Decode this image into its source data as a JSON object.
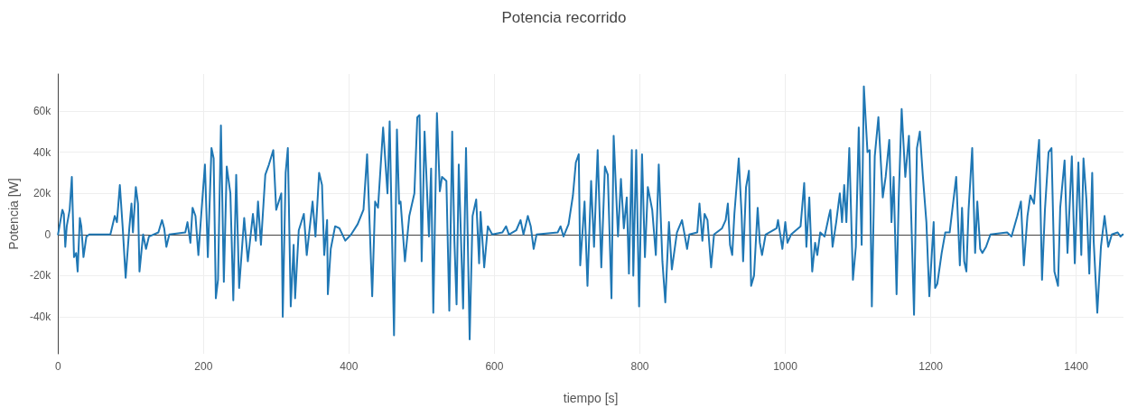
{
  "chart_data": {
    "type": "line",
    "title": "Potencia recorrido",
    "xlabel": "tiempo [s]",
    "ylabel": "Potencia [W]",
    "xlim": [
      0,
      1465
    ],
    "xticks": [
      0,
      200,
      400,
      600,
      800,
      1000,
      1200,
      1400
    ],
    "ylim": [
      -58000,
      78000
    ],
    "yticks": [
      {
        "value": -40000,
        "label": "-40k"
      },
      {
        "value": -20000,
        "label": "-20k"
      },
      0,
      {
        "value": 20000,
        "label": "20k"
      },
      {
        "value": 40000,
        "label": "40k"
      },
      {
        "value": 60000,
        "label": "60k"
      }
    ],
    "grid": true,
    "legend": false,
    "marker": "none",
    "line_style": "solid",
    "ref_lines": [
      {
        "axis": "y",
        "value": 0,
        "color": "#444444",
        "line_style": "solid"
      }
    ],
    "series": [
      {
        "color": "#1f77b4",
        "x": [
          0,
          2,
          6,
          8,
          10,
          12,
          16,
          19,
          22,
          25,
          27,
          30,
          32,
          35,
          39,
          43,
          72,
          78,
          81,
          85,
          89,
          93,
          98,
          101,
          103,
          107,
          110,
          112,
          117,
          121,
          125,
          138,
          143,
          146,
          149,
          153,
          175,
          178,
          182,
          185,
          189,
          193,
          197,
          202,
          206,
          211,
          214,
          217,
          220,
          224,
          228,
          232,
          237,
          241,
          245,
          249,
          256,
          261,
          268,
          272,
          275,
          279,
          285,
          290,
          296,
          300,
          307,
          309,
          313,
          316,
          320,
          324,
          326,
          331,
          338,
          342,
          350,
          354,
          359,
          363,
          366,
          370,
          371,
          375,
          381,
          387,
          395,
          403,
          412,
          420,
          425,
          432,
          436,
          440,
          447,
          453,
          456,
          462,
          466,
          469,
          471,
          477,
          483,
          490,
          494,
          497,
          500,
          504,
          510,
          513,
          516,
          521,
          525,
          528,
          534,
          538,
          542,
          545,
          548,
          551,
          557,
          561,
          566,
          570,
          575,
          579,
          581,
          586,
          591,
          597,
          611,
          616,
          620,
          630,
          636,
          640,
          646,
          650,
          654,
          658,
          687,
          691,
          695,
          702,
          708,
          712,
          716,
          718,
          724,
          728,
          733,
          737,
          742,
          747,
          752,
          756,
          761,
          764,
          770,
          774,
          778,
          782,
          785,
          789,
          791,
          795,
          799,
          803,
          807,
          811,
          817,
          822,
          826,
          831,
          835,
          840,
          844,
          851,
          858,
          865,
          868,
          879,
          882,
          886,
          889,
          893,
          898,
          902,
          913,
          918,
          921,
          924,
          927,
          930,
          936,
          940,
          942,
          946,
          950,
          953,
          957,
          962,
          965,
          968,
          973,
          988,
          990,
          996,
          1000,
          1003,
          1008,
          1021,
          1026,
          1029,
          1033,
          1037,
          1041,
          1044,
          1048,
          1054,
          1060,
          1062,
          1065,
          1070,
          1075,
          1078,
          1081,
          1084,
          1088,
          1093,
          1097,
          1101,
          1105,
          1108,
          1113,
          1116,
          1119,
          1123,
          1128,
          1134,
          1138,
          1143,
          1146,
          1149,
          1153,
          1156,
          1160,
          1165,
          1170,
          1177,
          1181,
          1185,
          1189,
          1194,
          1198,
          1204,
          1206,
          1209,
          1215,
          1220,
          1226,
          1235,
          1240,
          1243,
          1246,
          1249,
          1252,
          1257,
          1261,
          1264,
          1268,
          1271,
          1276,
          1282,
          1305,
          1311,
          1319,
          1324,
          1328,
          1333,
          1337,
          1342,
          1347,
          1349,
          1353,
          1357,
          1362,
          1366,
          1370,
          1375,
          1378,
          1384,
          1388,
          1394,
          1398,
          1403,
          1407,
          1410,
          1414,
          1418,
          1422,
          1424,
          1429,
          1434,
          1439,
          1444,
          1449,
          1457,
          1461,
          1464
        ],
        "values": [
          0,
          4000,
          12000,
          10000,
          -6000,
          4000,
          12000,
          28000,
          -11000,
          -9000,
          -18000,
          8000,
          4000,
          -11000,
          -1000,
          0,
          0,
          9000,
          6000,
          24000,
          3000,
          -21000,
          3000,
          15000,
          1000,
          23000,
          15000,
          -18000,
          0,
          -7000,
          -1000,
          1000,
          7000,
          3000,
          -6000,
          0,
          1000,
          6000,
          -4000,
          13000,
          9000,
          -10000,
          10000,
          34000,
          -11000,
          42000,
          37000,
          -31000,
          -22000,
          53000,
          -23000,
          33000,
          20000,
          -32000,
          29000,
          -26000,
          8000,
          -13000,
          10000,
          -3000,
          16000,
          -5000,
          29000,
          34000,
          41000,
          12000,
          20000,
          -40000,
          30000,
          42000,
          -35000,
          -5000,
          -31000,
          2000,
          10000,
          -10000,
          16000,
          -1000,
          30000,
          24000,
          -10000,
          7000,
          -29000,
          -7000,
          4000,
          3000,
          -3000,
          0,
          5000,
          12000,
          39000,
          -30000,
          16000,
          13000,
          52000,
          20000,
          55000,
          -49000,
          51000,
          15000,
          16000,
          -13000,
          9000,
          20000,
          57000,
          58000,
          -13000,
          50000,
          -1000,
          32000,
          -38000,
          59000,
          21000,
          28000,
          26000,
          -37000,
          50000,
          -3000,
          -34000,
          34000,
          -36000,
          42000,
          -51000,
          9000,
          17000,
          -14000,
          11000,
          -16000,
          4000,
          0,
          1000,
          4000,
          0,
          2000,
          7000,
          0,
          9000,
          4000,
          -7000,
          0,
          1000,
          4000,
          -1000,
          5000,
          19000,
          35000,
          39000,
          -15000,
          16000,
          -25000,
          26000,
          -6000,
          41000,
          -16000,
          33000,
          29000,
          -31000,
          48000,
          -1000,
          27000,
          3000,
          18000,
          -19000,
          41000,
          -20000,
          41000,
          -35000,
          39000,
          -11000,
          23000,
          12000,
          -10000,
          34000,
          -13000,
          -33000,
          6000,
          -17000,
          1000,
          7000,
          -7000,
          0,
          1000,
          15000,
          -3000,
          10000,
          7000,
          -16000,
          0,
          3000,
          7000,
          15000,
          -5000,
          -10000,
          10000,
          37000,
          9000,
          -13000,
          23000,
          31000,
          -25000,
          -20000,
          13000,
          -4000,
          -10000,
          0,
          3000,
          7000,
          -7000,
          6000,
          -4000,
          0,
          4000,
          25000,
          -6000,
          18000,
          -18000,
          -4000,
          -10000,
          1000,
          -1000,
          9000,
          12000,
          -6000,
          6000,
          20000,
          6000,
          24000,
          6000,
          42000,
          -22000,
          -6000,
          52000,
          -5000,
          72000,
          40000,
          41000,
          -35000,
          38000,
          57000,
          18000,
          28000,
          46000,
          6000,
          28000,
          -29000,
          18000,
          61000,
          28000,
          48000,
          -39000,
          42000,
          50000,
          29000,
          6000,
          -30000,
          6000,
          -26000,
          -24000,
          -9000,
          1000,
          1000,
          28000,
          -15000,
          13000,
          -13000,
          -18000,
          12000,
          42000,
          -9000,
          16000,
          -7000,
          -9000,
          -6000,
          0,
          1000,
          -1000,
          9000,
          16000,
          -15000,
          9000,
          19000,
          15000,
          38000,
          46000,
          -22000,
          12000,
          40000,
          42000,
          -18000,
          -25000,
          13000,
          36000,
          -9000,
          38000,
          -14000,
          35000,
          -10000,
          37000,
          17000,
          -19000,
          30000,
          -3000,
          -38000,
          -6000,
          9000,
          -6000,
          0,
          1000,
          -1000,
          0
        ]
      }
    ]
  }
}
